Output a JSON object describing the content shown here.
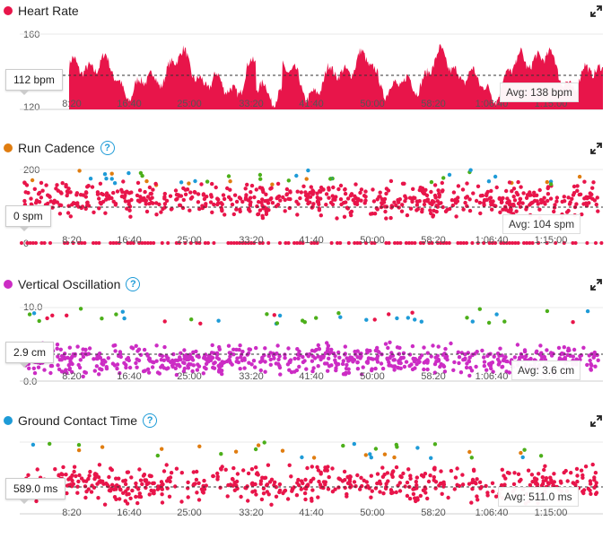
{
  "colors": {
    "hr": "#e8154a",
    "cadence": "#e07d10",
    "vo": "#cc2cc4",
    "gct": "#1e9bd7",
    "green": "#4caf1a",
    "grey": "#888888"
  },
  "x_ticks": [
    "8:20",
    "16:40",
    "25:00",
    "33:20",
    "41:40",
    "50:00",
    "58:20",
    "1:06:40",
    "1:15:00"
  ],
  "panels": [
    {
      "key": "hr",
      "title": "Heart Rate",
      "help": false,
      "y_top": "160",
      "y_bottom": "120",
      "current": "112 bpm",
      "avg": "Avg: 138 bpm"
    },
    {
      "key": "cadence",
      "title": "Run Cadence",
      "help": true,
      "y_top": "200",
      "y_bottom": "0",
      "current": "0 spm",
      "avg": "Avg: 104 spm"
    },
    {
      "key": "vo",
      "title": "Vertical Oscillation",
      "help": true,
      "y_top": "10.0",
      "y_bottom": "0.0",
      "current": "2.9 cm",
      "avg": "Avg: 3.6 cm"
    },
    {
      "key": "gct",
      "title": "Ground Contact Time",
      "help": true,
      "y_top": "",
      "y_bottom": "",
      "current": "589.0 ms",
      "avg": "Avg: 511.0 ms"
    }
  ],
  "icons": {
    "help": "help-icon",
    "expand": "expand-icon"
  },
  "help_glyph": "?"
}
